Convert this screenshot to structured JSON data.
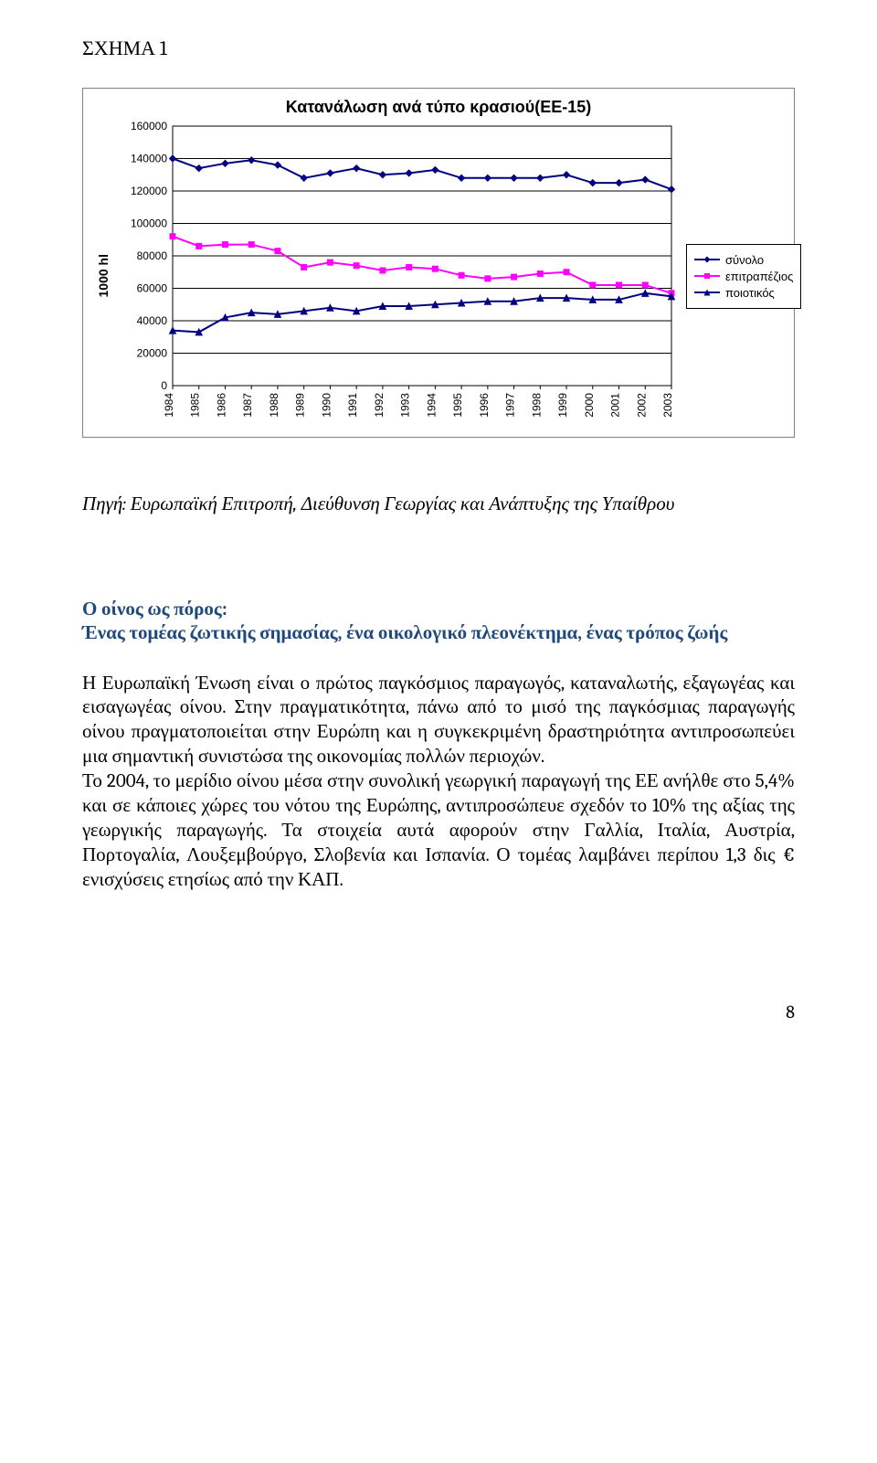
{
  "page": {
    "figure_label": "ΣΧΗΜΑ 1",
    "page_number": "8"
  },
  "chart": {
    "type": "line",
    "title": "Κατανάλωση ανά τύπο κρασιού(EE-15)",
    "ylabel": "1000 hl",
    "ylim": [
      0,
      160000
    ],
    "ytick_step": 20000,
    "yticks": [
      "0",
      "20000",
      "40000",
      "60000",
      "80000",
      "100000",
      "120000",
      "140000",
      "160000"
    ],
    "xlabels": [
      "1984",
      "1985",
      "1986",
      "1987",
      "1988",
      "1989",
      "1990",
      "1991",
      "1992",
      "1993",
      "1994",
      "1995",
      "1996",
      "1997",
      "1998",
      "1999",
      "2000",
      "2001",
      "2002",
      "2003"
    ],
    "background_color": "#ffffff",
    "grid_color": "#000000",
    "border_color": "#808080",
    "axis_fontsize": 12,
    "title_fontsize": 18,
    "series": [
      {
        "name": "σύνολο",
        "color": "#000080",
        "marker": "diamond",
        "marker_size": 7,
        "line_width": 2,
        "values": [
          140000,
          134000,
          137000,
          139000,
          136000,
          128000,
          131000,
          134000,
          130000,
          131000,
          133000,
          128000,
          128000,
          128000,
          128000,
          130000,
          125000,
          125000,
          127000,
          121000
        ]
      },
      {
        "name": "επιτραπέζιος",
        "color": "#ff00ff",
        "marker": "square",
        "marker_size": 6,
        "line_width": 2,
        "values": [
          92000,
          86000,
          87000,
          87000,
          83000,
          73000,
          76000,
          74000,
          71000,
          73000,
          72000,
          68000,
          66000,
          67000,
          69000,
          70000,
          62000,
          62000,
          62000,
          57000
        ]
      },
      {
        "name": "ποιοτικός",
        "color": "#000080",
        "marker": "triangle",
        "marker_size": 7,
        "line_width": 2,
        "values": [
          34000,
          33000,
          42000,
          45000,
          44000,
          46000,
          48000,
          46000,
          49000,
          49000,
          50000,
          51000,
          52000,
          52000,
          54000,
          54000,
          53000,
          53000,
          57000,
          55000
        ]
      }
    ],
    "legend": {
      "position": "right",
      "border_color": "#000000"
    }
  },
  "source_line": "Πηγή: Ευρωπαϊκή Επιτροπή, Διεύθυνση Γεωργίας και Ανάπτυξης της Υπαίθρου",
  "heading": {
    "line1": "Ο οίνος ως πόρος:",
    "line2": "Ένας τομέας ζωτικής σημασίας, ένα οικολογικό πλεονέκτημα, ένας τρόπος ζωής",
    "color": "#1f497d"
  },
  "body": "Η Ευρωπαϊκή Ένωση είναι ο πρώτος παγκόσμιος παραγωγός, καταναλωτής, εξαγωγέας και εισαγωγέας οίνου. Στην πραγματικότητα, πάνω από το μισό της παγκόσμιας παραγωγής οίνου πραγματοποιείται στην Ευρώπη και η συγκεκριμένη δραστηριότητα αντιπροσωπεύει μια σημαντική συνιστώσα της οικονομίας πολλών περιοχών.\nΤο 2004, το μερίδιο οίνου μέσα στην συνολική γεωργική παραγωγή της ΕΕ ανήλθε στο 5,4% και σε κάποιες χώρες του νότου της Ευρώπης, αντιπροσώπευε σχεδόν το 10% της αξίας της γεωργικής παραγωγής. Τα στοιχεία αυτά αφορούν στην Γαλλία, Ιταλία, Αυστρία, Πορτογαλία, Λουξεμβούργο, Σλοβενία και Ισπανία. Ο τομέας λαμβάνει περίπου 1,3 δις  €  ενισχύσεις ετησίως από την ΚΑΠ."
}
